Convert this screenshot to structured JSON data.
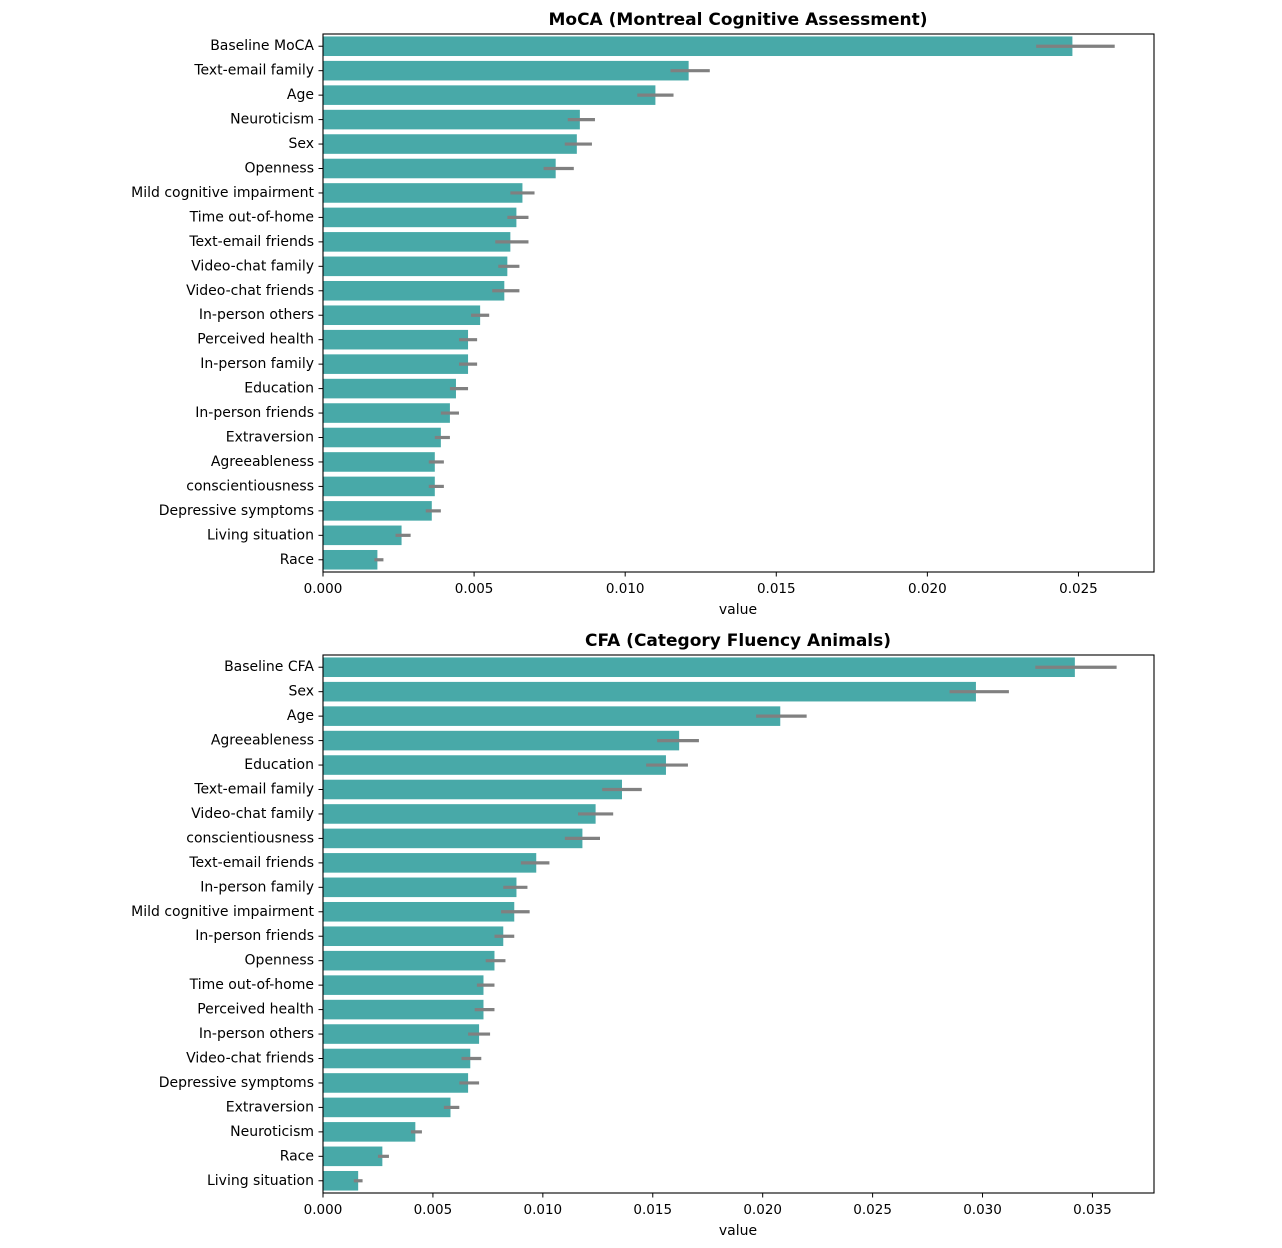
{
  "chart_data": [
    {
      "type": "bar",
      "orientation": "horizontal",
      "title": "MoCA (Montreal Cognitive Assessment)",
      "xlabel": "value",
      "ylabel": "",
      "xlim": [
        0,
        0.0275
      ],
      "xticks": [
        "0.000",
        "0.005",
        "0.010",
        "0.015",
        "0.020",
        "0.025"
      ],
      "bar_color": "#48a9a8",
      "error_color": "#808080",
      "grid": false,
      "categories": [
        "Baseline MoCA",
        "Text-email family",
        "Age",
        "Neuroticism",
        "Sex",
        "Openness",
        "Mild cognitive impairment",
        "Time out-of-home",
        "Text-email friends",
        "Video-chat family",
        "Video-chat friends",
        "In-person others",
        "Perceived health",
        "In-person family",
        "Education",
        "In-person friends",
        "Extraversion",
        "Agreeableness",
        "conscientiousness",
        "Depressive symptoms",
        "Living situation",
        "Race"
      ],
      "values": [
        0.0248,
        0.0121,
        0.011,
        0.0085,
        0.0084,
        0.0077,
        0.0066,
        0.0064,
        0.0062,
        0.0061,
        0.006,
        0.0052,
        0.0048,
        0.0048,
        0.0044,
        0.0042,
        0.0039,
        0.0037,
        0.0037,
        0.0036,
        0.0026,
        0.0018
      ],
      "err_low": [
        0.0236,
        0.0115,
        0.0104,
        0.0081,
        0.008,
        0.0073,
        0.0062,
        0.0061,
        0.0057,
        0.0058,
        0.0056,
        0.0049,
        0.0045,
        0.0045,
        0.0042,
        0.0039,
        0.0037,
        0.0035,
        0.0035,
        0.0034,
        0.0024,
        0.0017
      ],
      "err_high": [
        0.0262,
        0.0128,
        0.0116,
        0.009,
        0.0089,
        0.0083,
        0.007,
        0.0068,
        0.0068,
        0.0065,
        0.0065,
        0.0055,
        0.0051,
        0.0051,
        0.0048,
        0.0045,
        0.0042,
        0.004,
        0.004,
        0.0039,
        0.0029,
        0.002
      ]
    },
    {
      "type": "bar",
      "orientation": "horizontal",
      "title": "CFA (Category Fluency Animals)",
      "xlabel": "value",
      "ylabel": "",
      "xlim": [
        0,
        0.0378
      ],
      "xticks": [
        "0.000",
        "0.005",
        "0.010",
        "0.015",
        "0.020",
        "0.025",
        "0.030",
        "0.035"
      ],
      "bar_color": "#48a9a8",
      "error_color": "#808080",
      "grid": false,
      "categories": [
        "Baseline CFA",
        "Sex",
        "Age",
        "Agreeableness",
        "Education",
        "Text-email family",
        "Video-chat family",
        "conscientiousness",
        "Text-email friends",
        "In-person family",
        "Mild cognitive impairment",
        "In-person friends",
        "Openness",
        "Time out-of-home",
        "Perceived health",
        "In-person others",
        "Video-chat friends",
        "Depressive symptoms",
        "Extraversion",
        "Neuroticism",
        "Race",
        "Living situation"
      ],
      "values": [
        0.0342,
        0.0297,
        0.0208,
        0.0162,
        0.0156,
        0.0136,
        0.0124,
        0.0118,
        0.0097,
        0.0088,
        0.0087,
        0.0082,
        0.0078,
        0.0073,
        0.0073,
        0.0071,
        0.0067,
        0.0066,
        0.0058,
        0.0042,
        0.0027,
        0.0016
      ],
      "err_low": [
        0.0324,
        0.0285,
        0.0197,
        0.0152,
        0.0147,
        0.0127,
        0.0116,
        0.011,
        0.009,
        0.0082,
        0.0081,
        0.0078,
        0.0074,
        0.007,
        0.0069,
        0.0066,
        0.0063,
        0.0062,
        0.0055,
        0.004,
        0.0025,
        0.0014
      ],
      "err_high": [
        0.0361,
        0.0312,
        0.022,
        0.0171,
        0.0166,
        0.0145,
        0.0132,
        0.0126,
        0.0103,
        0.0093,
        0.0094,
        0.0087,
        0.0083,
        0.0078,
        0.0078,
        0.0076,
        0.0072,
        0.0071,
        0.0062,
        0.0045,
        0.003,
        0.0018
      ]
    }
  ]
}
